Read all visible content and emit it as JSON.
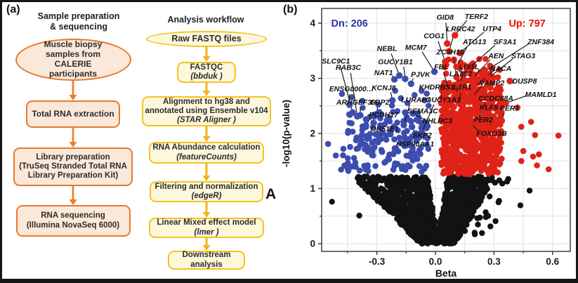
{
  "figure": {
    "panel_a_label": "(a)",
    "panel_b_label": "(b)",
    "overlay_letter": "A"
  },
  "flowcharts": {
    "sample_prep": {
      "title_lines": [
        "Sample preparation",
        "& sequencing"
      ],
      "theme": {
        "border": "#e8792b",
        "fill": "#fbe8d9",
        "arrow": "#ef7d22"
      },
      "steps": [
        {
          "shape": "ellipse",
          "lines": [
            "Muscle biopsy",
            "samples from",
            "CALERIE",
            "participants"
          ]
        },
        {
          "shape": "box",
          "lines": [
            "Total RNA extraction"
          ]
        },
        {
          "shape": "box",
          "lines": [
            "Library preparation",
            "(TruSeq Stranded Total RNA",
            "Library Preparation Kit)"
          ]
        },
        {
          "shape": "box",
          "lines": [
            "RNA sequencing",
            "(Illumina NovaSeq 6000)"
          ]
        }
      ]
    },
    "analysis": {
      "title_lines": [
        "Analysis workflow"
      ],
      "theme": {
        "border": "#f2c41f",
        "fill": "#fdf7dc",
        "arrow": "#f4b31b"
      },
      "steps": [
        {
          "shape": "ellipse",
          "lines": [
            "Raw FASTQ files"
          ]
        },
        {
          "shape": "box",
          "lines": [
            "FASTQC"
          ],
          "tool": "(bbduk )"
        },
        {
          "shape": "box",
          "lines": [
            "Alignment to hg38 and",
            "annotated using Ensemble v104"
          ],
          "tool": "(STAR Aligner )"
        },
        {
          "shape": "box",
          "lines": [
            "RNA Abundance calculation"
          ],
          "tool": "(featureCounts)"
        },
        {
          "shape": "box",
          "lines": [
            "Filtering and normalization"
          ],
          "tool": "(edgeR)"
        },
        {
          "shape": "box",
          "lines": [
            "Linear Mixed effect model"
          ],
          "tool": "(lmer )"
        },
        {
          "shape": "box",
          "lines": [
            "Downstream",
            "analysis"
          ]
        }
      ]
    }
  },
  "chart_data": {
    "type": "scatter",
    "subtype": "volcano",
    "xlabel": "Beta",
    "ylabel": "-log10(p-value)",
    "xlim": [
      -0.58,
      0.69
    ],
    "ylim": [
      -0.14,
      4.27
    ],
    "x_ticks": [
      -0.3,
      0.0,
      0.3,
      0.6
    ],
    "x_minor_ticks": [
      -0.45,
      -0.15,
      0.15,
      0.45
    ],
    "y_ticks": [
      0,
      1,
      2,
      3,
      4
    ],
    "y_minor_ticks": [
      0.5,
      1.5,
      2.5,
      3.5
    ],
    "grid": true,
    "legend": "none",
    "counts": {
      "down": 206,
      "up": 797
    },
    "annotations": [
      {
        "text": "Dn: 206",
        "color": "#2b35a5",
        "x": -0.44,
        "y": 4.0
      },
      {
        "text": "Up: 797",
        "color": "#ee1509",
        "x": 0.47,
        "y": 4.0
      }
    ],
    "colors": {
      "down": "#3d4dae",
      "up": "#df2318",
      "ns": "#121212",
      "grid": "#e2e2e2",
      "axis": "#4d4d4d"
    },
    "significance_threshold": 1.24,
    "labeled_genes": [
      {
        "name": "SLC9C1",
        "lx": -0.51,
        "ly": 3.31,
        "px": -0.424,
        "py": 2.38,
        "side": "down"
      },
      {
        "name": "RAB3C",
        "lx": -0.446,
        "ly": 3.2,
        "px": -0.4,
        "py": 2.31,
        "side": "down"
      },
      {
        "name": "ENSG0000…",
        "lx": -0.43,
        "ly": 2.81,
        "px": -0.44,
        "py": 2.52,
        "side": "down"
      },
      {
        "name": "KCNJ8",
        "lx": -0.265,
        "ly": 2.83,
        "px": -0.22,
        "py": 2.6,
        "side": "down"
      },
      {
        "name": "ARHGEF39",
        "lx": -0.407,
        "ly": 2.57,
        "px": -0.385,
        "py": 2.33,
        "side": "down"
      },
      {
        "name": "LBP2",
        "lx": -0.284,
        "ly": 2.57,
        "px": -0.3,
        "py": 2.35,
        "side": "down"
      },
      {
        "name": "PCDH17",
        "lx": -0.266,
        "ly": 2.34,
        "px": -0.356,
        "py": 2.15,
        "side": "down"
      },
      {
        "name": "OR51E1",
        "lx": -0.26,
        "ly": 2.08,
        "px": -0.28,
        "py": 1.9,
        "side": "down"
      },
      {
        "name": "NEBL",
        "lx": -0.248,
        "ly": 3.54,
        "px": -0.185,
        "py": 3.05,
        "side": "down"
      },
      {
        "name": "GUCY1B1",
        "lx": -0.205,
        "ly": 3.3,
        "px": -0.155,
        "py": 2.99,
        "side": "down"
      },
      {
        "name": "NAT1",
        "lx": -0.266,
        "ly": 3.1,
        "px": -0.21,
        "py": 2.98,
        "side": "down"
      },
      {
        "name": "MCM7",
        "lx": -0.1,
        "ly": 3.56,
        "px": -0.005,
        "py": 3.12,
        "side": "down"
      },
      {
        "name": "PJVK",
        "lx": -0.076,
        "ly": 3.07,
        "px": -0.125,
        "py": 2.9,
        "side": "down"
      },
      {
        "name": "LURAP1",
        "lx": -0.1,
        "ly": 2.61,
        "px": -0.162,
        "py": 2.15,
        "side": "down"
      },
      {
        "name": "GUCY1A1",
        "lx": 0.04,
        "ly": 2.61,
        "px": -0.07,
        "py": 2.02,
        "side": "down"
      },
      {
        "name": "SEMA3C",
        "lx": -0.065,
        "ly": 2.41,
        "px": -0.155,
        "py": 2.38,
        "side": "down"
      },
      {
        "name": "NHLRC3",
        "lx": 0.01,
        "ly": 2.23,
        "px": -0.115,
        "py": 2.36,
        "side": "down"
      },
      {
        "name": "SKP2",
        "lx": -0.068,
        "ly": 1.97,
        "px": -0.12,
        "py": 2.12,
        "side": "down"
      },
      {
        "name": "HSP90AA1",
        "lx": -0.104,
        "ly": 1.81,
        "px": -0.06,
        "py": 1.96,
        "side": "down"
      },
      {
        "name": "GID8",
        "lx": 0.05,
        "ly": 4.11,
        "px": 0.06,
        "py": 3.63,
        "side": "up"
      },
      {
        "name": "TERF2",
        "lx": 0.21,
        "ly": 4.12,
        "px": 0.1,
        "py": 3.78,
        "side": "up"
      },
      {
        "name": "LRRC42",
        "lx": 0.13,
        "ly": 3.9,
        "px": 0.07,
        "py": 3.49,
        "side": "up"
      },
      {
        "name": "UTP4",
        "lx": 0.29,
        "ly": 3.9,
        "px": 0.125,
        "py": 3.46,
        "side": "up"
      },
      {
        "name": "COG1",
        "lx": -0.007,
        "ly": 3.77,
        "px": 0.05,
        "py": 3.3,
        "side": "up"
      },
      {
        "name": "ATG13",
        "lx": 0.2,
        "ly": 3.66,
        "px": 0.108,
        "py": 3.21,
        "side": "up"
      },
      {
        "name": "SF3A1",
        "lx": 0.356,
        "ly": 3.66,
        "px": 0.162,
        "py": 3.15,
        "side": "up"
      },
      {
        "name": "ZNF384",
        "lx": 0.54,
        "ly": 3.66,
        "px": 0.25,
        "py": 3.12,
        "side": "up"
      },
      {
        "name": "ZC3H10",
        "lx": 0.076,
        "ly": 3.48,
        "px": 0.108,
        "py": 3.02,
        "side": "up"
      },
      {
        "name": "AEN",
        "lx": 0.31,
        "ly": 3.41,
        "px": 0.19,
        "py": 3.0,
        "side": "up"
      },
      {
        "name": "STAG3",
        "lx": 0.45,
        "ly": 3.41,
        "px": 0.27,
        "py": 3.0,
        "side": "up"
      },
      {
        "name": "FBL",
        "lx": 0.03,
        "ly": 3.21,
        "px": 0.07,
        "py": 2.76,
        "side": "up"
      },
      {
        "name": "LIX1L",
        "lx": 0.173,
        "ly": 3.21,
        "px": 0.126,
        "py": 2.89,
        "side": "up"
      },
      {
        "name": "NACA",
        "lx": 0.335,
        "ly": 3.18,
        "px": 0.198,
        "py": 2.83,
        "side": "up"
      },
      {
        "name": "LATS2",
        "lx": 0.13,
        "ly": 3.08,
        "px": 0.108,
        "py": 2.7,
        "side": "up"
      },
      {
        "name": "VAMP2",
        "lx": 0.29,
        "ly": 2.92,
        "px": 0.187,
        "py": 2.66,
        "side": "up"
      },
      {
        "name": "DUSP8",
        "lx": 0.457,
        "ly": 2.95,
        "px": 0.381,
        "py": 2.95,
        "side": "up"
      },
      {
        "name": "KHDRBS1",
        "lx": 0.007,
        "ly": 2.84,
        "px": 0.03,
        "py": 2.55,
        "side": "up"
      },
      {
        "name": "IL1R1",
        "lx": 0.133,
        "ly": 2.84,
        "px": 0.126,
        "py": 2.53,
        "side": "up"
      },
      {
        "name": "MAMLD1",
        "lx": 0.54,
        "ly": 2.71,
        "px": 0.36,
        "py": 2.55,
        "side": "up"
      },
      {
        "name": "CCDC88A",
        "lx": 0.31,
        "ly": 2.64,
        "px": 0.252,
        "py": 2.41,
        "side": "up"
      },
      {
        "name": "KLF9",
        "lx": 0.273,
        "ly": 2.47,
        "px": 0.216,
        "py": 2.25,
        "side": "up"
      },
      {
        "name": "PER1",
        "lx": 0.38,
        "ly": 2.46,
        "px": 0.34,
        "py": 2.23,
        "side": "up"
      },
      {
        "name": "PER2",
        "lx": 0.245,
        "ly": 2.25,
        "px": 0.29,
        "py": 2.1,
        "side": "up"
      },
      {
        "name": "FOXO3B",
        "lx": 0.288,
        "ly": 2.0,
        "px": 0.18,
        "py": 2.19,
        "side": "up"
      }
    ],
    "outlier_points": {
      "up": [
        [
          0.42,
          2.47
        ],
        [
          0.49,
          2.21
        ],
        [
          0.44,
          2.12
        ],
        [
          0.51,
          1.97
        ],
        [
          0.63,
          1.96
        ],
        [
          0.45,
          1.68
        ],
        [
          0.5,
          1.58
        ],
        [
          0.44,
          1.5
        ],
        [
          0.52,
          1.42
        ],
        [
          0.58,
          1.35
        ],
        [
          0.53,
          1.62
        ]
      ],
      "down": [
        [
          -0.55,
          1.81
        ],
        [
          -0.51,
          1.6
        ]
      ],
      "ns": [
        [
          -0.53,
          0.76
        ],
        [
          -0.39,
          0.51
        ]
      ]
    },
    "clouds": {
      "seed": 42,
      "ns_count": 1600,
      "ns_y_max": 1.22,
      "ns_right_tail": 24,
      "down_count": 185,
      "up_count": 761
    }
  }
}
